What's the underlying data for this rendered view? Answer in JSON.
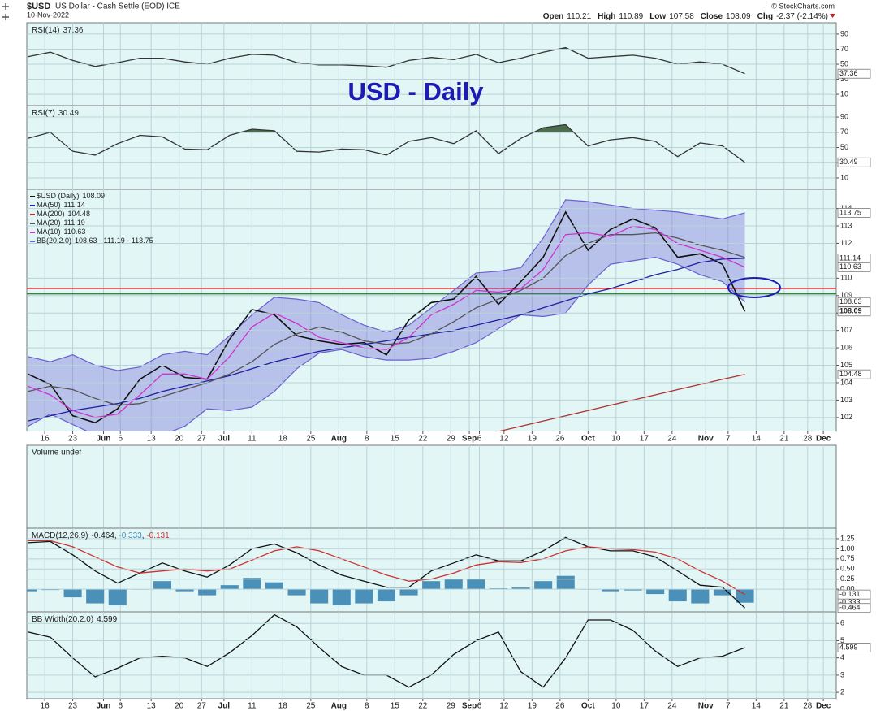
{
  "header": {
    "symbol": "$USD",
    "name": "US Dollar - Cash Settle (EOD) ICE",
    "date": "10-Nov-2022",
    "source": "© StockCharts.com",
    "quote": [
      {
        "label": "Open",
        "value": 110.21
      },
      {
        "label": "High",
        "value": 110.89
      },
      {
        "label": "Low",
        "value": 107.58
      },
      {
        "label": "Close",
        "value": 108.09
      },
      {
        "label": "Chg",
        "value": -2.37,
        "value_label": "-2.37 (-2.14%)"
      }
    ]
  },
  "annotation": "USD - Daily",
  "x_axis": {
    "x": [
      -3,
      1,
      5,
      9,
      13,
      17,
      21,
      25,
      29,
      33,
      37,
      41,
      45,
      49,
      53,
      57,
      61,
      65,
      69,
      73,
      77,
      81,
      85,
      89,
      93,
      97,
      101,
      105,
      109,
      113,
      117,
      121,
      125
    ],
    "xlim": [
      -3.2,
      141.3
    ],
    "xticks": [
      {
        "value": 0,
        "label": "16"
      },
      {
        "value": 5,
        "label": "23"
      },
      {
        "value": 10.5,
        "label": "Jun"
      },
      {
        "value": 13.5,
        "label": "6"
      },
      {
        "value": 19,
        "label": "13"
      },
      {
        "value": 24,
        "label": "20"
      },
      {
        "value": 28,
        "label": "27"
      },
      {
        "value": 32,
        "label": "Jul"
      },
      {
        "value": 37,
        "label": "11"
      },
      {
        "value": 42.5,
        "label": "18"
      },
      {
        "value": 47.5,
        "label": "25"
      },
      {
        "value": 52.5,
        "label": "Aug"
      },
      {
        "value": 57.5,
        "label": "8"
      },
      {
        "value": 62.5,
        "label": "15"
      },
      {
        "value": 67.5,
        "label": "22"
      },
      {
        "value": 72.5,
        "label": "29"
      },
      {
        "value": 75.8,
        "label": "Sep"
      },
      {
        "value": 77.6,
        "label": "6"
      },
      {
        "value": 82,
        "label": "12"
      },
      {
        "value": 87,
        "label": "19"
      },
      {
        "value": 92,
        "label": "26"
      },
      {
        "value": 97,
        "label": "Oct"
      },
      {
        "value": 102,
        "label": "10"
      },
      {
        "value": 107,
        "label": "17"
      },
      {
        "value": 112,
        "label": "24"
      },
      {
        "value": 118,
        "label": "Nov"
      },
      {
        "value": 122,
        "label": "7"
      },
      {
        "value": 127,
        "label": "14"
      },
      {
        "value": 132,
        "label": "21"
      },
      {
        "value": 136.2,
        "label": "28"
      },
      {
        "value": 139,
        "label": "Dec"
      }
    ]
  },
  "chart_data": [
    {
      "type": "line",
      "legend": "inline",
      "ylim": [
        -5,
        105
      ],
      "yticks": [
        90,
        70,
        50,
        30,
        10
      ],
      "hlines": [
        {
          "value": 70,
          "style": "solid",
          "color": "#555555"
        },
        {
          "value": 50,
          "style": "dashdot",
          "color": "#555555"
        },
        {
          "value": 30,
          "style": "solid",
          "color": "#555555"
        }
      ],
      "fill_above": 70,
      "fill_color": "#4d6e4d",
      "series": [
        {
          "name": "RSI(14)",
          "kind": "line",
          "color": "#333333",
          "box": true,
          "last_label": "37.36",
          "values": [
            60,
            66,
            55,
            47,
            52,
            58,
            58,
            53,
            50,
            58,
            63,
            62,
            52,
            49,
            49,
            48,
            46,
            55,
            59,
            56,
            63,
            52,
            58,
            66,
            72,
            58,
            60,
            62,
            58,
            50,
            53,
            50,
            37.36
          ]
        }
      ]
    },
    {
      "type": "line",
      "legend": "inline",
      "ylim": [
        -5,
        105
      ],
      "yticks": [
        90,
        70,
        50,
        30,
        10
      ],
      "hlines": [
        {
          "value": 70,
          "style": "solid",
          "color": "#555555"
        },
        {
          "value": 50,
          "style": "dashdot",
          "color": "#555555"
        },
        {
          "value": 30,
          "style": "solid",
          "color": "#555555"
        }
      ],
      "fill_above": 70,
      "fill_color": "#4d6e4d",
      "series": [
        {
          "name": "RSI(7)",
          "kind": "line",
          "color": "#333333",
          "box": true,
          "last_label": "30.49",
          "values": [
            62,
            70,
            45,
            40,
            55,
            66,
            64,
            48,
            47,
            66,
            74,
            72,
            45,
            44,
            48,
            47,
            40,
            58,
            63,
            55,
            72,
            42,
            62,
            76,
            80,
            52,
            60,
            63,
            58,
            38,
            56,
            52,
            30.49
          ]
        }
      ]
    },
    {
      "type": "line",
      "legend": "stacked",
      "ylim": [
        101.2,
        115.1
      ],
      "yticks": [
        114,
        113,
        112,
        110,
        109,
        108,
        107,
        106,
        105,
        104,
        103,
        102
      ],
      "hlines": [
        {
          "value": 109.42,
          "style": "solid",
          "color": "#c81e1e"
        },
        {
          "value": 109.1,
          "style": "solid",
          "color": "#2e8b2e"
        }
      ],
      "series": [
        {
          "name": "$USD (Daily)",
          "kind": "line",
          "color": "#111111",
          "box": true,
          "strong": true,
          "last_label": "108.09",
          "values": [
            104.5,
            103.9,
            102.1,
            101.7,
            102.5,
            104.2,
            105.0,
            104.3,
            104.2,
            106.5,
            108.2,
            107.9,
            106.7,
            106.4,
            106.2,
            106.3,
            105.6,
            107.6,
            108.6,
            108.8,
            110.1,
            108.5,
            109.8,
            111.2,
            113.8,
            111.6,
            112.8,
            113.4,
            112.9,
            111.2,
            111.4,
            110.8,
            108.09
          ]
        },
        {
          "name": "MA(50)",
          "kind": "line",
          "color": "#1f1fa0",
          "box": true,
          "last_label": "111.14",
          "values": [
            101.8,
            102.1,
            102.4,
            102.6,
            102.8,
            103.1,
            103.5,
            103.8,
            104.1,
            104.4,
            104.8,
            105.2,
            105.5,
            105.8,
            106.0,
            106.2,
            106.4,
            106.6,
            106.8,
            107.0,
            107.3,
            107.6,
            107.9,
            108.3,
            108.7,
            109.1,
            109.4,
            109.8,
            110.2,
            110.5,
            110.9,
            111.1,
            111.14
          ]
        },
        {
          "name": "MA(200)",
          "kind": "line",
          "color": "#b03030",
          "box": true,
          "last_label": "104.48",
          "values": [
            null,
            null,
            null,
            null,
            null,
            null,
            null,
            null,
            null,
            null,
            null,
            null,
            null,
            null,
            null,
            null,
            null,
            null,
            null,
            null,
            null,
            101.2,
            101.5,
            101.8,
            102.1,
            102.4,
            102.7,
            103.0,
            103.3,
            103.6,
            103.9,
            104.2,
            104.48
          ]
        },
        {
          "name": "MA(20)",
          "kind": "line",
          "color": "#555555",
          "box": false,
          "last_label": "111.19",
          "values": [
            103.5,
            103.8,
            103.6,
            103.1,
            102.7,
            102.8,
            103.2,
            103.6,
            104.0,
            104.5,
            105.2,
            106.2,
            106.8,
            107.2,
            106.9,
            106.4,
            106.2,
            106.3,
            106.8,
            107.5,
            108.3,
            108.8,
            109.3,
            110.0,
            111.3,
            112.0,
            112.5,
            112.5,
            112.6,
            112.3,
            111.9,
            111.6,
            111.19
          ]
        },
        {
          "name": "MA(10)",
          "kind": "line",
          "color": "#cc33cc",
          "box": true,
          "last_label": "110.63",
          "values": [
            103.8,
            103.3,
            102.4,
            102.0,
            102.2,
            103.3,
            104.5,
            104.5,
            104.2,
            105.5,
            107.2,
            108.0,
            107.4,
            106.6,
            106.3,
            106.0,
            105.9,
            106.6,
            107.9,
            108.5,
            109.3,
            109.2,
            109.4,
            110.5,
            112.5,
            112.6,
            112.4,
            113.0,
            112.8,
            112.0,
            111.6,
            111.2,
            110.63
          ]
        },
        {
          "name": "BB(20,2.0)",
          "kind": "band",
          "color": "#6b5fd0",
          "legend_values": "108.63 - 111.19 - 113.75",
          "upper_label": "113.75",
          "lower_label": "108.63",
          "upper": [
            105.5,
            105.2,
            105.6,
            105.0,
            104.7,
            104.9,
            105.6,
            105.8,
            105.6,
            106.7,
            107.9,
            108.9,
            108.8,
            108.6,
            107.9,
            107.3,
            106.9,
            107.3,
            108.3,
            109.3,
            110.3,
            110.4,
            110.6,
            112.3,
            114.5,
            114.4,
            114.2,
            114.0,
            113.9,
            113.8,
            113.6,
            113.4,
            113.75
          ],
          "lower": [
            101.5,
            102.2,
            101.6,
            101.0,
            100.9,
            100.9,
            101.0,
            101.5,
            102.5,
            102.4,
            102.6,
            103.5,
            104.8,
            105.7,
            105.9,
            105.5,
            105.3,
            105.3,
            105.4,
            105.8,
            106.3,
            107.1,
            107.9,
            107.8,
            108.0,
            109.6,
            110.8,
            111.0,
            111.2,
            110.8,
            110.2,
            109.8,
            108.63
          ]
        }
      ]
    },
    {
      "type": "volume",
      "label": "Volume undef"
    },
    {
      "type": "line",
      "legend": "inline",
      "label": "MACD(12,26,9)",
      "separator": ", ",
      "ylim": [
        -0.56,
        1.51
      ],
      "yticks": [
        1.25,
        {
          "value": 1,
          "label": "1.00"
        },
        0.75,
        {
          "value": 0.5,
          "label": "0.50"
        },
        0.25,
        {
          "value": 0,
          "label": "0.00"
        }
      ],
      "series": [
        {
          "kind": "histogram",
          "color": "#4a90b8",
          "box": true,
          "last_label": "-0.333",
          "values": [
            -0.05,
            -0.02,
            -0.2,
            -0.35,
            -0.4,
            0.0,
            0.2,
            -0.05,
            -0.15,
            0.1,
            0.28,
            0.17,
            -0.15,
            -0.35,
            -0.4,
            -0.35,
            -0.3,
            -0.15,
            0.2,
            0.25,
            0.25,
            0.02,
            0.04,
            0.2,
            0.33,
            0.0,
            -0.05,
            -0.03,
            -0.12,
            -0.3,
            -0.35,
            -0.15,
            -0.333
          ]
        },
        {
          "kind": "line",
          "color": "#111111",
          "box": true,
          "last_label": "-0.464",
          "legend_order": 0,
          "values": [
            1.15,
            1.18,
            0.85,
            0.45,
            0.15,
            0.4,
            0.65,
            0.45,
            0.3,
            0.6,
            1.0,
            1.12,
            0.9,
            0.6,
            0.35,
            0.2,
            0.05,
            0.05,
            0.45,
            0.65,
            0.85,
            0.7,
            0.7,
            0.95,
            1.28,
            1.05,
            0.95,
            0.95,
            0.8,
            0.45,
            0.1,
            0.05,
            -0.464
          ]
        },
        {
          "kind": "line",
          "color": "#d03030",
          "box": true,
          "last_label": "-0.131",
          "values": [
            1.2,
            1.2,
            1.05,
            0.8,
            0.55,
            0.4,
            0.45,
            0.5,
            0.45,
            0.5,
            0.72,
            0.95,
            1.05,
            0.95,
            0.75,
            0.55,
            0.35,
            0.2,
            0.25,
            0.4,
            0.6,
            0.68,
            0.66,
            0.75,
            0.95,
            1.05,
            1.0,
            0.98,
            0.92,
            0.75,
            0.45,
            0.2,
            -0.131
          ]
        }
      ]
    },
    {
      "type": "line",
      "legend": "inline",
      "ylim": [
        1.63,
        6.67
      ],
      "yticks": [
        6,
        5,
        4,
        3,
        2
      ],
      "series": [
        {
          "name": "BB Width(20,2.0)",
          "kind": "line",
          "color": "#111111",
          "box": true,
          "last_label": "4.599",
          "values": [
            5.5,
            5.2,
            4.0,
            2.9,
            3.4,
            4.0,
            4.1,
            4.0,
            3.5,
            4.3,
            5.3,
            6.5,
            5.8,
            4.6,
            3.5,
            3.0,
            3.0,
            2.3,
            3.0,
            4.2,
            5.0,
            5.5,
            3.2,
            2.3,
            4.0,
            6.2,
            6.2,
            5.6,
            4.4,
            3.5,
            4.0,
            4.1,
            4.599
          ]
        }
      ]
    }
  ]
}
